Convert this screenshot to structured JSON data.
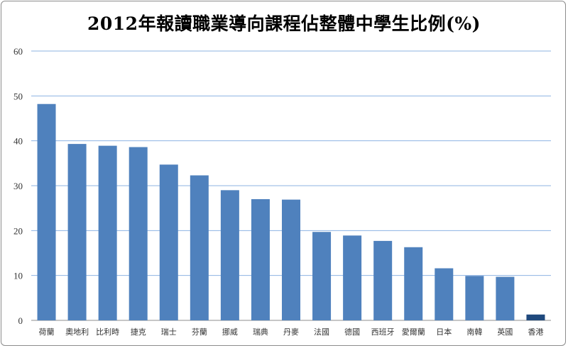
{
  "chart_data": {
    "type": "bar",
    "title": "2012年報讀職業導向課程佔整體中學生比例(%)",
    "xlabel": "",
    "ylabel": "",
    "ylim": [
      0,
      60
    ],
    "yticks": [
      0,
      10,
      20,
      30,
      40,
      50,
      60
    ],
    "grid": true,
    "categories": [
      "荷蘭",
      "奧地利",
      "比利時",
      "捷克",
      "瑞士",
      "芬蘭",
      "挪威",
      "瑞典",
      "丹麥",
      "法國",
      "德國",
      "西班牙",
      "愛爾蘭",
      "日本",
      "南韓",
      "英國",
      "香港"
    ],
    "values": [
      48.2,
      39.3,
      38.9,
      38.6,
      34.7,
      32.3,
      29.0,
      27.0,
      26.9,
      19.7,
      18.9,
      17.7,
      16.3,
      11.6,
      9.9,
      9.7,
      1.3
    ],
    "colors": {
      "default": "#4f81bd",
      "highlight": "#1f497d",
      "highlight_category": "香港",
      "grid": "#8db3e2"
    }
  }
}
